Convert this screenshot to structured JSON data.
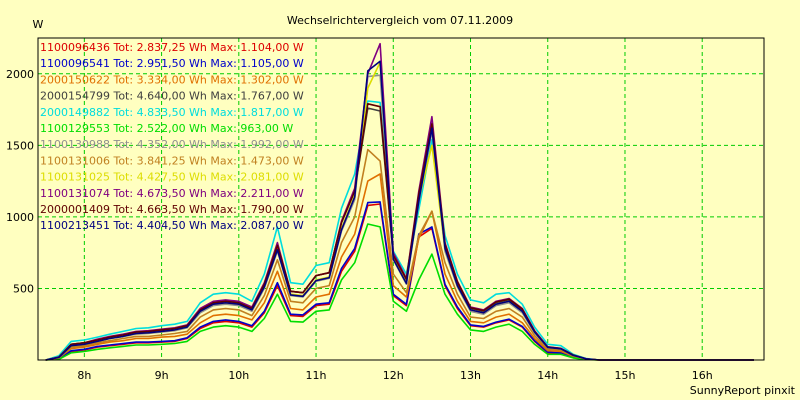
{
  "chart_data": {
    "type": "line",
    "title": "Wechselrichtervergleich vom 07.11.2009",
    "ylabel": "W",
    "xlabel": "",
    "footer": "SunnyReport pinxit",
    "ylim": [
      0,
      2250
    ],
    "xlim": [
      7.4,
      16.8
    ],
    "yticks": [
      500,
      1000,
      1500,
      2000
    ],
    "xticks": [
      8,
      9,
      10,
      11,
      12,
      13,
      14,
      15,
      16
    ],
    "xtick_labels": [
      "8h",
      "9h",
      "10h",
      "11h",
      "12h",
      "13h",
      "14h",
      "15h",
      "16h"
    ],
    "grid": true,
    "legend_position": "top-left",
    "background": "#ffffc0",
    "plot_border": "#000000",
    "grid_color": "#00cc00",
    "x": [
      7.5,
      7.67,
      7.83,
      8.0,
      8.17,
      8.33,
      8.5,
      8.67,
      8.83,
      9.0,
      9.17,
      9.33,
      9.5,
      9.67,
      9.83,
      10.0,
      10.17,
      10.33,
      10.5,
      10.67,
      10.83,
      11.0,
      11.17,
      11.33,
      11.5,
      11.67,
      11.83,
      12.0,
      12.17,
      12.33,
      12.5,
      12.67,
      12.83,
      13.0,
      13.17,
      13.33,
      13.5,
      13.67,
      13.83,
      14.0,
      14.17,
      14.33,
      14.5,
      14.67,
      14.83,
      15.0,
      15.17,
      15.33,
      15.5,
      15.67,
      15.83,
      16.0,
      16.17,
      16.33,
      16.5,
      16.67
    ],
    "series": [
      {
        "name": "1100096436",
        "label": "1100096436 Tot: 2.837,25 Wh Max: 1.104,00 W",
        "color": "#dd0000",
        "values": [
          0,
          10,
          60,
          70,
          90,
          100,
          110,
          120,
          120,
          125,
          130,
          150,
          220,
          260,
          270,
          260,
          230,
          330,
          520,
          310,
          305,
          380,
          390,
          620,
          760,
          1080,
          1090,
          450,
          380,
          860,
          920,
          520,
          360,
          240,
          230,
          260,
          280,
          230,
          130,
          50,
          50,
          20,
          5,
          0,
          0,
          0,
          0,
          0,
          0,
          0,
          0,
          0,
          0,
          0,
          0,
          0
        ]
      },
      {
        "name": "1100096541",
        "label": "1100096541 Tot: 2.951,50 Wh Max: 1.105,00 W",
        "color": "#0000cc",
        "values": [
          0,
          10,
          65,
          75,
          95,
          105,
          115,
          125,
          125,
          130,
          135,
          155,
          230,
          270,
          280,
          270,
          240,
          340,
          540,
          320,
          315,
          390,
          400,
          640,
          780,
          1100,
          1105,
          460,
          390,
          880,
          930,
          530,
          370,
          245,
          235,
          265,
          285,
          235,
          135,
          55,
          50,
          20,
          5,
          0,
          0,
          0,
          0,
          0,
          0,
          0,
          0,
          0,
          0,
          0,
          0,
          0
        ]
      },
      {
        "name": "2000150622",
        "label": "2000150622 Tot: 3.334,00 Wh Max: 1.302,00 W",
        "color": "#e07000",
        "values": [
          0,
          15,
          80,
          90,
          110,
          125,
          135,
          150,
          150,
          160,
          165,
          180,
          260,
          310,
          320,
          310,
          280,
          400,
          620,
          360,
          350,
          440,
          460,
          720,
          880,
          1250,
          1300,
          520,
          440,
          850,
          1040,
          600,
          410,
          270,
          260,
          300,
          320,
          260,
          150,
          65,
          60,
          25,
          5,
          0,
          0,
          0,
          0,
          0,
          0,
          0,
          0,
          0,
          0,
          0,
          0,
          0
        ]
      },
      {
        "name": "2000154799",
        "label": "2000154799 Tot: 4.640,00 Wh Max: 1.767,00 W",
        "color": "#404040",
        "values": [
          0,
          20,
          110,
          120,
          140,
          160,
          175,
          195,
          200,
          210,
          220,
          240,
          350,
          400,
          410,
          400,
          360,
          530,
          800,
          480,
          470,
          590,
          610,
          960,
          1180,
          1760,
          1740,
          720,
          560,
          1150,
          1620,
          800,
          540,
          360,
          340,
          400,
          420,
          350,
          200,
          90,
          80,
          35,
          8,
          0,
          0,
          0,
          0,
          0,
          0,
          0,
          0,
          0,
          0,
          0,
          0,
          0
        ]
      },
      {
        "name": "2000149882",
        "label": "2000149882 Tot: 4.833,50 Wh Max: 1.817,00 W",
        "color": "#00dddd",
        "values": [
          0,
          30,
          130,
          140,
          160,
          180,
          200,
          220,
          225,
          240,
          250,
          270,
          400,
          460,
          470,
          460,
          410,
          600,
          930,
          540,
          530,
          660,
          680,
          1060,
          1300,
          1810,
          1800,
          760,
          600,
          1050,
          1540,
          870,
          600,
          420,
          400,
          460,
          470,
          390,
          230,
          110,
          100,
          40,
          10,
          0,
          0,
          0,
          0,
          0,
          0,
          0,
          0,
          0,
          0,
          0,
          0,
          0
        ]
      },
      {
        "name": "1100129553",
        "label": "1100129553 Tot: 2.522,00 Wh Max: 963,00 W",
        "color": "#00dd00",
        "values": [
          0,
          5,
          50,
          60,
          75,
          85,
          95,
          105,
          105,
          110,
          115,
          130,
          200,
          230,
          240,
          230,
          200,
          290,
          460,
          270,
          265,
          340,
          350,
          560,
          680,
          950,
          930,
          410,
          340,
          560,
          740,
          460,
          320,
          210,
          200,
          230,
          250,
          200,
          110,
          40,
          40,
          15,
          3,
          0,
          0,
          0,
          0,
          0,
          0,
          0,
          0,
          0,
          0,
          0,
          0,
          0
        ]
      },
      {
        "name": "1100130988",
        "label": "1100130988 Tot: 4.352,00 Wh Max: 1.992,00 W",
        "color": "#909090",
        "values": [
          0,
          18,
          100,
          110,
          130,
          150,
          165,
          180,
          185,
          195,
          205,
          225,
          330,
          380,
          390,
          380,
          340,
          500,
          760,
          450,
          440,
          550,
          570,
          900,
          1120,
          1980,
          1990,
          700,
          530,
          1100,
          1600,
          760,
          510,
          340,
          320,
          380,
          400,
          330,
          190,
          85,
          75,
          30,
          7,
          0,
          0,
          0,
          0,
          0,
          0,
          0,
          0,
          0,
          0,
          0,
          0,
          0
        ]
      },
      {
        "name": "1100131006",
        "label": "1100131006 Tot: 3.841,25 Wh Max: 1.473,00 W",
        "color": "#c08020",
        "values": [
          0,
          15,
          90,
          100,
          120,
          135,
          150,
          165,
          165,
          175,
          185,
          200,
          300,
          350,
          360,
          350,
          310,
          450,
          700,
          410,
          400,
          500,
          520,
          820,
          1000,
          1470,
          1390,
          600,
          470,
          870,
          1040,
          680,
          460,
          300,
          290,
          340,
          360,
          300,
          170,
          75,
          70,
          28,
          6,
          0,
          0,
          0,
          0,
          0,
          0,
          0,
          0,
          0,
          0,
          0,
          0,
          0
        ]
      },
      {
        "name": "1100131025",
        "label": "1100131025 Tot: 4.427,50 Wh Max: 2.081,00 W",
        "color": "#dddd00",
        "values": [
          0,
          20,
          100,
          110,
          130,
          150,
          165,
          185,
          190,
          200,
          210,
          230,
          340,
          390,
          400,
          390,
          350,
          510,
          780,
          460,
          450,
          560,
          580,
          920,
          1150,
          1900,
          2080,
          710,
          540,
          1120,
          1500,
          780,
          520,
          350,
          330,
          390,
          410,
          340,
          195,
          88,
          78,
          32,
          8,
          0,
          0,
          0,
          0,
          0,
          0,
          0,
          0,
          0,
          0,
          0,
          0,
          0
        ]
      },
      {
        "name": "1100131074",
        "label": "1100131074 Tot: 4.673,50 Wh Max: 2.211,00 W",
        "color": "#800080",
        "values": [
          0,
          20,
          110,
          120,
          145,
          165,
          180,
          200,
          205,
          215,
          225,
          245,
          360,
          410,
          420,
          410,
          370,
          540,
          820,
          480,
          470,
          590,
          610,
          970,
          1200,
          2000,
          2210,
          750,
          570,
          1180,
          1700,
          820,
          550,
          370,
          350,
          410,
          430,
          360,
          205,
          92,
          82,
          34,
          8,
          0,
          0,
          0,
          0,
          0,
          0,
          0,
          0,
          0,
          0,
          0,
          0,
          0
        ]
      },
      {
        "name": "2000001409",
        "label": "2000001409 Tot: 4.663,50 Wh Max: 1.790,00 W",
        "color": "#600000",
        "values": [
          0,
          20,
          110,
          120,
          140,
          160,
          175,
          195,
          200,
          210,
          220,
          240,
          350,
          400,
          410,
          400,
          360,
          530,
          800,
          480,
          470,
          590,
          610,
          960,
          1180,
          1790,
          1770,
          730,
          565,
          1160,
          1650,
          810,
          545,
          365,
          345,
          405,
          425,
          355,
          200,
          90,
          80,
          35,
          8,
          0,
          0,
          0,
          0,
          0,
          0,
          0,
          0,
          0,
          0,
          0,
          0,
          0
        ]
      },
      {
        "name": "1100213451",
        "label": "1100213451 Tot: 4.404,50 Wh Max: 2.087,00 W",
        "color": "#000080",
        "values": [
          0,
          18,
          100,
          110,
          130,
          150,
          165,
          185,
          190,
          200,
          210,
          230,
          340,
          390,
          400,
          390,
          350,
          510,
          770,
          455,
          445,
          555,
          575,
          910,
          1140,
          2020,
          2087,
          705,
          535,
          1110,
          1620,
          780,
          520,
          350,
          330,
          390,
          410,
          340,
          195,
          88,
          78,
          32,
          8,
          0,
          0,
          0,
          0,
          0,
          0,
          0,
          0,
          0,
          0,
          0,
          0,
          0
        ]
      }
    ]
  }
}
